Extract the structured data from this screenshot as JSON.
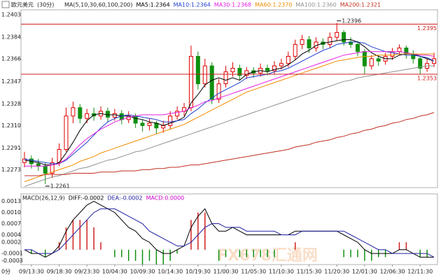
{
  "chart_data": [
    {
      "type": "candlestick",
      "title": "欧元美元",
      "subtitle": "(30分)",
      "indicator": "MA(5,10,30,60,100,200)",
      "categories": [
        null,
        "09/13:30",
        null,
        null,
        null,
        "09/18:30",
        null,
        null,
        null,
        "09/23:30",
        null,
        null,
        null,
        "10/04:30",
        null,
        null,
        null,
        "10/09:30",
        null,
        null,
        null,
        "10/14:30",
        null,
        null,
        null,
        "10/19:30",
        null,
        null,
        null,
        "11/00:30",
        null,
        null,
        null,
        "11/05:30",
        null,
        null,
        null,
        "11/10:30",
        null,
        null,
        null,
        "11/15:30",
        null,
        null,
        null,
        "11/20:30",
        null,
        null,
        null,
        "12/01:30",
        null,
        null,
        null,
        "12/06:30",
        null,
        null,
        null,
        "12/11:30",
        null,
        null
      ],
      "open": [
        1.2279,
        1.2282,
        1.2278,
        1.2276,
        1.227,
        1.2279,
        1.229,
        1.2318,
        1.2325,
        1.2316,
        1.232,
        1.2318,
        1.2322,
        1.2317,
        1.232,
        1.2315,
        1.2318,
        1.2312,
        1.231,
        1.2312,
        1.2308,
        1.231,
        1.2318,
        1.2322,
        1.2325,
        1.2368,
        1.2345,
        1.236,
        1.2332,
        1.2345,
        1.2355,
        1.2358,
        1.2352,
        1.2356,
        1.2354,
        1.2358,
        1.2356,
        1.236,
        1.2362,
        1.2368,
        1.2378,
        1.2382,
        1.2375,
        1.238,
        1.2378,
        1.2384,
        1.2388,
        1.238,
        1.2378,
        1.2372,
        1.236,
        1.2366,
        1.2364,
        1.2368,
        1.2372,
        1.2375,
        1.237,
        1.2366,
        1.2358,
        1.2362
      ],
      "high": [
        1.2288,
        1.2285,
        1.2282,
        1.2279,
        1.2283,
        1.2295,
        1.2325,
        1.233,
        1.2328,
        1.2324,
        1.2325,
        1.2326,
        1.2325,
        1.2324,
        1.2323,
        1.2322,
        1.232,
        1.2315,
        1.2316,
        1.2314,
        1.2314,
        1.2322,
        1.2326,
        1.2329,
        1.2377,
        1.2372,
        1.2366,
        1.2363,
        1.2349,
        1.236,
        1.2363,
        1.2361,
        1.2359,
        1.2359,
        1.2362,
        1.2361,
        1.2364,
        1.2366,
        1.2372,
        1.2382,
        1.2386,
        1.2385,
        1.2384,
        1.2383,
        1.2388,
        1.2396,
        1.239,
        1.2384,
        1.2381,
        1.2374,
        1.2369,
        1.2369,
        1.2371,
        1.2375,
        1.2378,
        1.2377,
        1.2373,
        1.2368,
        1.2366,
        1.2371
      ],
      "low": [
        1.2275,
        1.2274,
        1.2272,
        1.2261,
        1.2266,
        1.2276,
        1.2288,
        1.2312,
        1.2312,
        1.2312,
        1.2314,
        1.2315,
        1.2313,
        1.2314,
        1.2311,
        1.2312,
        1.2308,
        1.2305,
        1.2306,
        1.2303,
        1.2304,
        1.2307,
        1.2315,
        1.2318,
        1.2322,
        1.234,
        1.2342,
        1.2328,
        1.2329,
        1.2342,
        1.2351,
        1.2348,
        1.2349,
        1.235,
        1.2351,
        1.2352,
        1.2353,
        1.2357,
        1.2359,
        1.2365,
        1.2374,
        1.2371,
        1.2372,
        1.2374,
        1.2375,
        1.2381,
        1.2377,
        1.2375,
        1.2368,
        1.2353,
        1.2357,
        1.236,
        1.2361,
        1.2365,
        1.2369,
        1.2366,
        1.2362,
        1.2353,
        1.2355,
        1.2359
      ],
      "close": [
        1.2282,
        1.2278,
        1.2276,
        1.227,
        1.2279,
        1.229,
        1.2318,
        1.2325,
        1.2316,
        1.232,
        1.2318,
        1.2322,
        1.2317,
        1.232,
        1.2315,
        1.2318,
        1.2312,
        1.231,
        1.2312,
        1.2308,
        1.231,
        1.2318,
        1.2322,
        1.2325,
        1.2368,
        1.2345,
        1.236,
        1.2332,
        1.2345,
        1.2355,
        1.2358,
        1.2352,
        1.2356,
        1.2354,
        1.2358,
        1.2356,
        1.236,
        1.2362,
        1.2368,
        1.2378,
        1.2382,
        1.2375,
        1.238,
        1.2378,
        1.2384,
        1.2388,
        1.238,
        1.2378,
        1.2372,
        1.236,
        1.2366,
        1.2364,
        1.2368,
        1.2372,
        1.2375,
        1.237,
        1.2366,
        1.2358,
        1.2362,
        1.2366
      ],
      "up_color": "#e00000",
      "down_color": "#109010",
      "series": [
        {
          "name": "MA5:1.2364",
          "color": "#000000",
          "values": [
            1.2281,
            1.228,
            1.2279,
            1.2277,
            1.2277,
            1.2279,
            1.2287,
            1.2296,
            1.2306,
            1.2314,
            1.2319,
            1.232,
            1.2319,
            1.2319,
            1.2318,
            1.2318,
            1.2316,
            1.2315,
            1.2313,
            1.2312,
            1.231,
            1.2312,
            1.2314,
            1.2317,
            1.2329,
            1.2336,
            1.2344,
            1.2348,
            1.235,
            1.2348,
            1.235,
            1.2348,
            1.2353,
            1.2355,
            1.2356,
            1.2355,
            1.2357,
            1.2358,
            1.2361,
            1.2365,
            1.237,
            1.2373,
            1.2377,
            1.2379,
            1.238,
            1.2381,
            1.2382,
            1.2382,
            1.238,
            1.2376,
            1.2371,
            1.2368,
            1.2366,
            1.2366,
            1.2369,
            1.237,
            1.237,
            1.2368,
            1.2366,
            1.2364
          ]
        },
        {
          "name": "MA10:1.2364",
          "color": "#1f3fd0",
          "values": [
            1.2282,
            1.2281,
            1.228,
            1.2279,
            1.2278,
            1.2278,
            1.2281,
            1.2286,
            1.2291,
            1.2296,
            1.2302,
            1.2308,
            1.2313,
            1.2316,
            1.2318,
            1.2319,
            1.2318,
            1.2317,
            1.2316,
            1.2315,
            1.2313,
            1.2313,
            1.2314,
            1.2315,
            1.232,
            1.2324,
            1.2329,
            1.2333,
            1.2337,
            1.234,
            1.2343,
            1.2346,
            1.235,
            1.2351,
            1.2352,
            1.2353,
            1.2355,
            1.2356,
            1.2358,
            1.2361,
            1.2364,
            1.2367,
            1.237,
            1.2373,
            1.2375,
            1.2378,
            1.2379,
            1.238,
            1.238,
            1.2379,
            1.2376,
            1.2374,
            1.2372,
            1.2371,
            1.237,
            1.2369,
            1.2369,
            1.2368,
            1.2367,
            1.2364
          ]
        },
        {
          "name": "MA30:1.2368",
          "color": "#e020e0",
          "values": [
            1.2276,
            1.2276,
            1.2276,
            1.2276,
            1.2277,
            1.2278,
            1.2282,
            1.2288,
            1.2294,
            1.2299,
            1.2303,
            1.2307,
            1.231,
            1.2313,
            1.2315,
            1.2317,
            1.2318,
            1.2319,
            1.2319,
            1.2319,
            1.2319,
            1.232,
            1.2321,
            1.2322,
            1.2325,
            1.2327,
            1.233,
            1.2331,
            1.2333,
            1.2335,
            1.2337,
            1.2339,
            1.2341,
            1.2343,
            1.2345,
            1.2347,
            1.2349,
            1.2351,
            1.2353,
            1.2355,
            1.2357,
            1.2359,
            1.2361,
            1.2363,
            1.2365,
            1.2367,
            1.2369,
            1.237,
            1.2371,
            1.2372,
            1.2372,
            1.2372,
            1.2372,
            1.2372,
            1.2372,
            1.2371,
            1.237,
            1.2369,
            1.2369,
            1.2368
          ]
        },
        {
          "name": "MA60:1.2370",
          "color": "#f08c00",
          "values": [
            1.2263,
            1.2265,
            1.2267,
            1.2269,
            1.2271,
            1.2273,
            1.2275,
            1.2277,
            1.228,
            1.2282,
            1.2284,
            1.2287,
            1.2289,
            1.2291,
            1.2293,
            1.2295,
            1.2297,
            1.2299,
            1.2301,
            1.2303,
            1.2305,
            1.2307,
            1.2309,
            1.2311,
            1.2314,
            1.2317,
            1.232,
            1.2323,
            1.2326,
            1.2329,
            1.2332,
            1.2335,
            1.2338,
            1.234,
            1.2342,
            1.2344,
            1.2346,
            1.2348,
            1.235,
            1.2352,
            1.2354,
            1.2356,
            1.2358,
            1.236,
            1.2362,
            1.2364,
            1.2365,
            1.2366,
            1.2367,
            1.2368,
            1.2368,
            1.2369,
            1.2369,
            1.2369,
            1.237,
            1.237,
            1.237,
            1.237,
            1.237,
            1.237
          ]
        },
        {
          "name": "MA100:1.2360",
          "color": "#909090",
          "values": [
            1.2259,
            1.2261,
            1.2263,
            1.2265,
            1.2267,
            1.2268,
            1.227,
            1.2272,
            1.2274,
            1.2275,
            1.2277,
            1.2279,
            1.2281,
            1.2282,
            1.2284,
            1.2286,
            1.2288,
            1.2289,
            1.2291,
            1.2293,
            1.2295,
            1.2297,
            1.2299,
            1.2301,
            1.2303,
            1.2305,
            1.2307,
            1.2309,
            1.2311,
            1.2313,
            1.2315,
            1.2317,
            1.2319,
            1.2321,
            1.2323,
            1.2325,
            1.2327,
            1.2329,
            1.2331,
            1.2333,
            1.2335,
            1.2337,
            1.2339,
            1.2341,
            1.2343,
            1.2345,
            1.2347,
            1.2348,
            1.235,
            1.2351,
            1.2352,
            1.2353,
            1.2354,
            1.2355,
            1.2356,
            1.2357,
            1.2358,
            1.2359,
            1.236,
            1.236
          ]
        },
        {
          "name": "MA200:1.2321",
          "color": "#c03020",
          "values": [
            1.2268,
            1.2268,
            1.2268,
            1.2269,
            1.2269,
            1.2269,
            1.2269,
            1.227,
            1.227,
            1.227,
            1.227,
            1.2271,
            1.2271,
            1.2271,
            1.2272,
            1.2272,
            1.2272,
            1.2273,
            1.2273,
            1.2274,
            1.2274,
            1.2275,
            1.2275,
            1.2276,
            1.2277,
            1.2277,
            1.2278,
            1.2279,
            1.228,
            1.2281,
            1.2282,
            1.2283,
            1.2284,
            1.2285,
            1.2286,
            1.2287,
            1.2288,
            1.2289,
            1.229,
            1.2292,
            1.2293,
            1.2294,
            1.2296,
            1.2297,
            1.2298,
            1.23,
            1.2301,
            1.2303,
            1.2304,
            1.2306,
            1.2307,
            1.2309,
            1.231,
            1.2312,
            1.2313,
            1.2315,
            1.2316,
            1.2318,
            1.2319,
            1.2321
          ]
        }
      ],
      "hlines": [
        1.2395,
        1.2353
      ],
      "hline_color": "#d02020",
      "annotations": [
        1.2396,
        1.2261
      ],
      "ylim": [
        1.2258,
        1.2407
      ],
      "yticks": [
        1.2403,
        1.2384,
        1.2366,
        1.2347,
        1.2328,
        {
          "value": 1.231,
          "label": "1.2310"
        },
        1.2291,
        1.2273
      ]
    },
    {
      "type": "macd",
      "title": "MACD(26,12,9)",
      "series": [
        {
          "name": "DIFF:-0.0002",
          "color": "#000000",
          "values": [
            0,
            -0.0001,
            -0.0001,
            -0.0002,
            -0.0001,
            0.0001,
            0.0005,
            0.0008,
            0.001,
            0.0012,
            0.0013,
            0.0012,
            0.0011,
            0.001,
            0.0008,
            0.0006,
            0.0005,
            0.0003,
            0.0002,
            0,
            -0.0001,
            -0.0001,
            0,
            0.0001,
            0.0006,
            0.0009,
            0.0011,
            0.0007,
            0.0005,
            0.0005,
            0.0006,
            0.0005,
            0.0004,
            0.0004,
            0.0004,
            0.0004,
            0.0004,
            0.0004,
            0.0004,
            0.0005,
            0.0005,
            0.0005,
            0.0005,
            0.0005,
            0.0005,
            0.0005,
            0.0004,
            0.0003,
            0.0002,
            0,
            -0.0001,
            -0.0001,
            -0.0001,
            -0.0001,
            0,
            0,
            -0.0001,
            -0.0002,
            -0.0002,
            -0.0002
          ]
        },
        {
          "name": "DEA:-0.0002",
          "color": "#2020a0",
          "values": [
            0,
            0,
            -0.0001,
            -0.0001,
            -0.0001,
            0,
            0.0002,
            0.0004,
            0.0006,
            0.0008,
            0.001,
            0.0011,
            0.0011,
            0.0011,
            0.001,
            0.0009,
            0.0008,
            0.0007,
            0.0005,
            0.0004,
            0.0003,
            0.0002,
            0.0001,
            0.0001,
            0.0002,
            0.0004,
            0.0006,
            0.0007,
            0.0007,
            0.0006,
            0.0006,
            0.0006,
            0.0005,
            0.0005,
            0.0005,
            0.0005,
            0.0005,
            0.0004,
            0.0004,
            0.0004,
            0.0005,
            0.0005,
            0.0005,
            0.0005,
            0.0005,
            0.0005,
            0.0005,
            0.0004,
            0.0003,
            0.0002,
            0.0001,
            0,
            0,
            -0.0001,
            -0.0001,
            -0.0001,
            -0.0001,
            -0.0001,
            -0.0001,
            -0.0002
          ]
        }
      ],
      "histogram": {
        "name": "MACD:0.0000",
        "color": "#cc00cc",
        "up_color": "#d02020",
        "down_color": "#109010",
        "values": [
          0,
          -0.0001,
          0,
          -0.0002,
          0,
          0.0002,
          0.0006,
          0.0008,
          0.0008,
          0.0008,
          0.0006,
          0.0002,
          0,
          -0.0002,
          -0.0002,
          -0.0003,
          -0.0003,
          -0.0004,
          -0.0003,
          -0.0004,
          -0.0004,
          -0.0003,
          -0.0001,
          0,
          0.0008,
          0.001,
          0.001,
          0,
          -0.0003,
          -0.0002,
          0,
          -0.0002,
          -0.0002,
          -0.0002,
          -0.0002,
          -0.0002,
          -0.0002,
          0,
          0,
          0.0002,
          0,
          0,
          0,
          0,
          0,
          0,
          -0.0002,
          -0.0002,
          -0.0002,
          -0.0003,
          -0.0003,
          -0.0002,
          -0.0002,
          0,
          0.0002,
          0.0002,
          0,
          -0.0002,
          -0.0002,
          0
        ]
      },
      "ylim": [
        -0.0004,
        0.0015
      ],
      "yticks": [
        0.0013,
        {
          "value": 0.001,
          "label": "0.0010"
        },
        0.0007,
        0.0004,
        0.0002,
        -0.0001,
        -0.0003
      ],
      "corner_label": "0分"
    }
  ],
  "watermark": "FX678汇通网"
}
